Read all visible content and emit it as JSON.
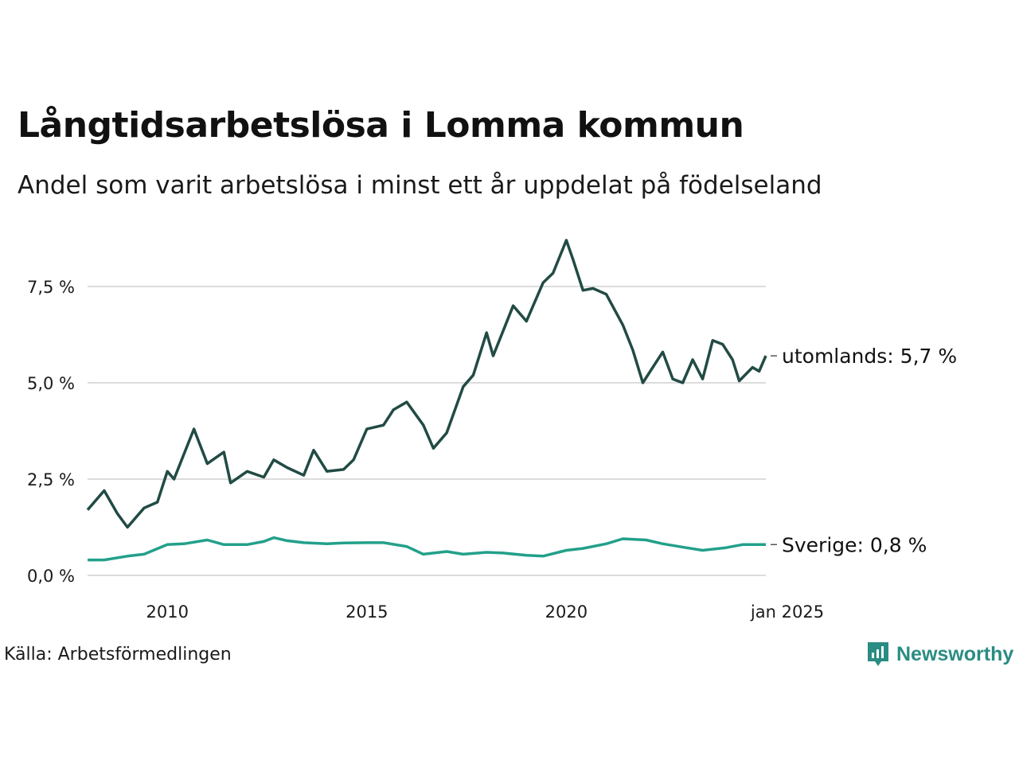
{
  "title": "Långtidsarbetslösa i Lomma kommun",
  "subtitle": "Andel som varit arbetslösa i minst ett år uppdelat på födelseland",
  "source": "Källa: Arbetsförmedlingen",
  "logo_text": "Newsworthy",
  "colors": {
    "utomlands": "#214b44",
    "sverige": "#22a08a",
    "grid": "#dcdcdc",
    "logo": "#2a8c82"
  },
  "chart_data": {
    "type": "line",
    "title": "Långtidsarbetslösa i Lomma kommun",
    "subtitle": "Andel som varit arbetslösa i minst ett år uppdelat på födelseland",
    "xlabel": "",
    "ylabel": "",
    "ylim": [
      0,
      9
    ],
    "xlim": [
      "2008-01",
      "2025-01"
    ],
    "y_ticks": [
      0,
      2.5,
      5.0,
      7.5
    ],
    "y_tick_labels": [
      "0,0 %",
      "2,5 %",
      "5,0 %",
      "7,5 %"
    ],
    "x_ticks": [
      "2010-01",
      "2015-01",
      "2020-01",
      "2025-01"
    ],
    "x_tick_labels": [
      "2010",
      "2015",
      "2020",
      "jan 2025"
    ],
    "grid": "horizontal",
    "legend": "end-of-line labels",
    "series": [
      {
        "name": "utomlands",
        "end_label": "utomlands: 5,7 %",
        "points": [
          [
            "2008-01",
            1.7
          ],
          [
            "2008-06",
            2.2
          ],
          [
            "2008-10",
            1.6
          ],
          [
            "2009-01",
            1.25
          ],
          [
            "2009-06",
            1.75
          ],
          [
            "2009-10",
            1.9
          ],
          [
            "2010-01",
            2.7
          ],
          [
            "2010-03",
            2.5
          ],
          [
            "2010-06",
            3.15
          ],
          [
            "2010-09",
            3.8
          ],
          [
            "2011-01",
            2.9
          ],
          [
            "2011-06",
            3.2
          ],
          [
            "2011-08",
            2.4
          ],
          [
            "2012-01",
            2.7
          ],
          [
            "2012-06",
            2.55
          ],
          [
            "2012-09",
            3.0
          ],
          [
            "2013-01",
            2.8
          ],
          [
            "2013-06",
            2.6
          ],
          [
            "2013-09",
            3.25
          ],
          [
            "2014-01",
            2.7
          ],
          [
            "2014-06",
            2.75
          ],
          [
            "2014-09",
            3.0
          ],
          [
            "2015-01",
            3.8
          ],
          [
            "2015-06",
            3.9
          ],
          [
            "2015-09",
            4.3
          ],
          [
            "2016-01",
            4.5
          ],
          [
            "2016-06",
            3.9
          ],
          [
            "2016-09",
            3.3
          ],
          [
            "2017-01",
            3.7
          ],
          [
            "2017-06",
            4.9
          ],
          [
            "2017-09",
            5.2
          ],
          [
            "2018-01",
            6.3
          ],
          [
            "2018-03",
            5.7
          ],
          [
            "2018-09",
            7.0
          ],
          [
            "2019-01",
            6.6
          ],
          [
            "2019-06",
            7.6
          ],
          [
            "2019-09",
            7.85
          ],
          [
            "2020-01",
            8.7
          ],
          [
            "2020-03",
            8.2
          ],
          [
            "2020-06",
            7.4
          ],
          [
            "2020-09",
            7.45
          ],
          [
            "2021-01",
            7.3
          ],
          [
            "2021-06",
            6.5
          ],
          [
            "2021-09",
            5.85
          ],
          [
            "2021-12",
            5.0
          ],
          [
            "2022-03",
            5.4
          ],
          [
            "2022-06",
            5.8
          ],
          [
            "2022-09",
            5.1
          ],
          [
            "2022-12",
            5.0
          ],
          [
            "2023-03",
            5.6
          ],
          [
            "2023-06",
            5.1
          ],
          [
            "2023-09",
            6.1
          ],
          [
            "2023-12",
            6.0
          ],
          [
            "2024-03",
            5.6
          ],
          [
            "2024-05",
            5.05
          ],
          [
            "2024-09",
            5.4
          ],
          [
            "2024-11",
            5.3
          ],
          [
            "2025-01",
            5.7
          ]
        ]
      },
      {
        "name": "Sverige",
        "end_label": "Sverige: 0,8 %",
        "points": [
          [
            "2008-01",
            0.4
          ],
          [
            "2008-06",
            0.4
          ],
          [
            "2009-01",
            0.5
          ],
          [
            "2009-06",
            0.55
          ],
          [
            "2010-01",
            0.8
          ],
          [
            "2010-06",
            0.82
          ],
          [
            "2011-01",
            0.92
          ],
          [
            "2011-06",
            0.8
          ],
          [
            "2012-01",
            0.8
          ],
          [
            "2012-06",
            0.88
          ],
          [
            "2012-09",
            0.98
          ],
          [
            "2013-01",
            0.9
          ],
          [
            "2013-06",
            0.85
          ],
          [
            "2014-01",
            0.82
          ],
          [
            "2014-06",
            0.84
          ],
          [
            "2015-01",
            0.85
          ],
          [
            "2015-06",
            0.85
          ],
          [
            "2016-01",
            0.75
          ],
          [
            "2016-06",
            0.55
          ],
          [
            "2017-01",
            0.62
          ],
          [
            "2017-06",
            0.55
          ],
          [
            "2018-01",
            0.6
          ],
          [
            "2018-06",
            0.58
          ],
          [
            "2019-01",
            0.52
          ],
          [
            "2019-06",
            0.5
          ],
          [
            "2020-01",
            0.65
          ],
          [
            "2020-06",
            0.7
          ],
          [
            "2021-01",
            0.82
          ],
          [
            "2021-06",
            0.95
          ],
          [
            "2022-01",
            0.92
          ],
          [
            "2022-06",
            0.82
          ],
          [
            "2023-01",
            0.72
          ],
          [
            "2023-06",
            0.65
          ],
          [
            "2024-01",
            0.72
          ],
          [
            "2024-06",
            0.8
          ],
          [
            "2025-01",
            0.8
          ]
        ]
      }
    ]
  }
}
